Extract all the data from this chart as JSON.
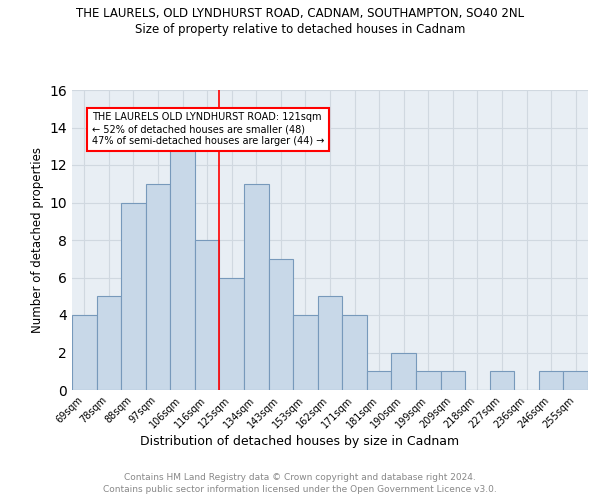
{
  "title": "THE LAURELS, OLD LYNDHURST ROAD, CADNAM, SOUTHAMPTON, SO40 2NL",
  "subtitle": "Size of property relative to detached houses in Cadnam",
  "xlabel": "Distribution of detached houses by size in Cadnam",
  "ylabel": "Number of detached properties",
  "categories": [
    "69sqm",
    "78sqm",
    "88sqm",
    "97sqm",
    "106sqm",
    "116sqm",
    "125sqm",
    "134sqm",
    "143sqm",
    "153sqm",
    "162sqm",
    "171sqm",
    "181sqm",
    "190sqm",
    "199sqm",
    "209sqm",
    "218sqm",
    "227sqm",
    "236sqm",
    "246sqm",
    "255sqm"
  ],
  "values": [
    4,
    5,
    10,
    11,
    13,
    8,
    6,
    11,
    7,
    4,
    5,
    4,
    1,
    2,
    1,
    1,
    0,
    1,
    0,
    1,
    1
  ],
  "bar_color": "#c8d8e8",
  "bar_edge_color": "#7799bb",
  "grid_color": "#d0d8e0",
  "background_color": "#e8eef4",
  "red_line_x": 5.5,
  "annotation_line1": "THE LAURELS OLD LYNDHURST ROAD: 121sqm",
  "annotation_line2": "← 52% of detached houses are smaller (48)",
  "annotation_line3": "47% of semi-detached houses are larger (44) →",
  "footer_line1": "Contains HM Land Registry data © Crown copyright and database right 2024.",
  "footer_line2": "Contains public sector information licensed under the Open Government Licence v3.0.",
  "ylim": [
    0,
    16
  ],
  "yticks": [
    0,
    2,
    4,
    6,
    8,
    10,
    12,
    14,
    16
  ]
}
